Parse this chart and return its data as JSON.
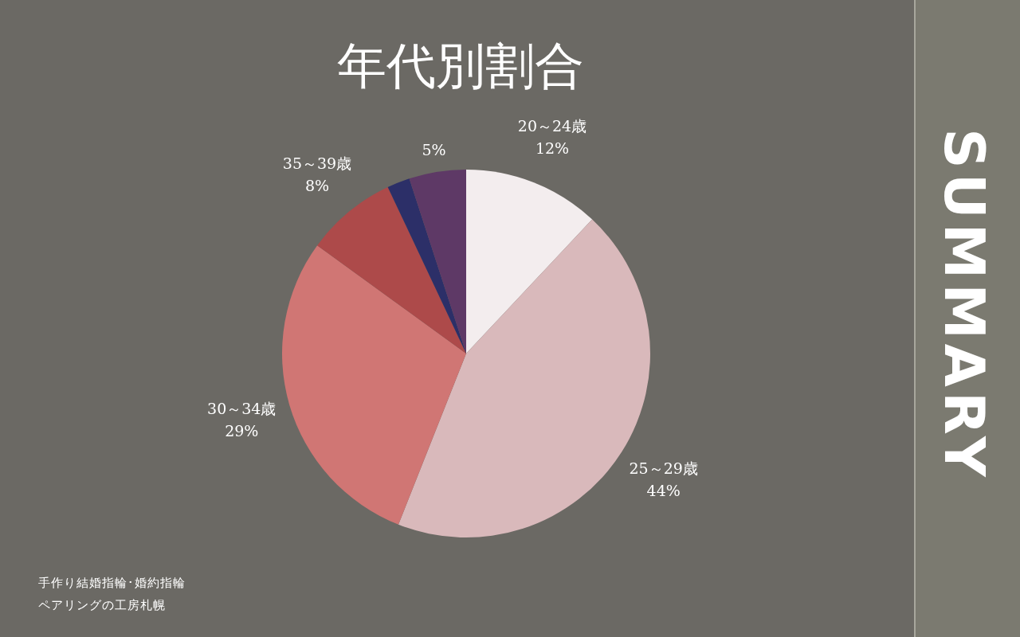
{
  "chart_data": {
    "type": "pie",
    "title": "年代別割合",
    "categories": [
      "20～24歳",
      "25～29歳",
      "30～34歳",
      "35～39歳",
      null,
      null
    ],
    "values": [
      12,
      44,
      29,
      8,
      2,
      5
    ],
    "value_labels": [
      "12%",
      "44%",
      "29%",
      "8%",
      null,
      "5%"
    ],
    "colors": [
      "#f3edee",
      "#d9b9bb",
      "#d07674",
      "#ad4a4a",
      "#2c2f68",
      "#5e3966"
    ],
    "annotations": [
      "SUMMARY",
      "手作り結婚指輪･婚約指輪",
      "ペアリングの工房札幌"
    ]
  }
}
